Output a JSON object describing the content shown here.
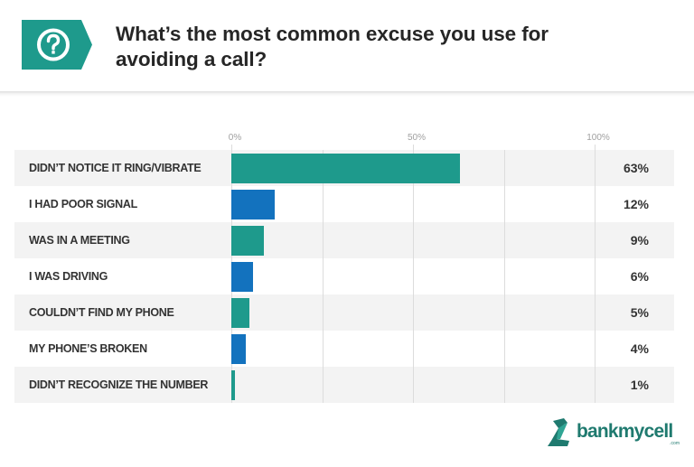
{
  "header": {
    "icon": "question-mark-icon",
    "badge_color": "#1e9a8c",
    "title": "What’s the most common excuse you use for avoiding a call?"
  },
  "chart_data": {
    "type": "bar",
    "orientation": "horizontal",
    "title": "What’s the most common excuse you use for avoiding a call?",
    "xlabel": "",
    "ylabel": "",
    "xlim": [
      0,
      100
    ],
    "x_ticks": [
      "0%",
      "50%",
      "100%"
    ],
    "grid": true,
    "categories": [
      "DIDN’T NOTICE IT RING/VIBRATE",
      "I HAD POOR SIGNAL",
      "WAS IN A MEETING",
      "I WAS DRIVING",
      "COULDN’T FIND MY PHONE",
      "MY PHONE’S BROKEN",
      "DIDN’T RECOGNIZE THE NUMBER"
    ],
    "values": [
      63,
      12,
      9,
      6,
      5,
      4,
      1
    ],
    "value_labels": [
      "63%",
      "12%",
      "9%",
      "6%",
      "5%",
      "4%",
      "1%"
    ],
    "bar_colors": [
      "#1e9a8c",
      "#1372be",
      "#1e9a8c",
      "#1372be",
      "#1e9a8c",
      "#1372be",
      "#1e9a8c"
    ],
    "unit": "%"
  },
  "footer": {
    "logo_text": "bankmycell",
    "logo_suffix": ".com",
    "logo_color": "#1f7a6f"
  }
}
